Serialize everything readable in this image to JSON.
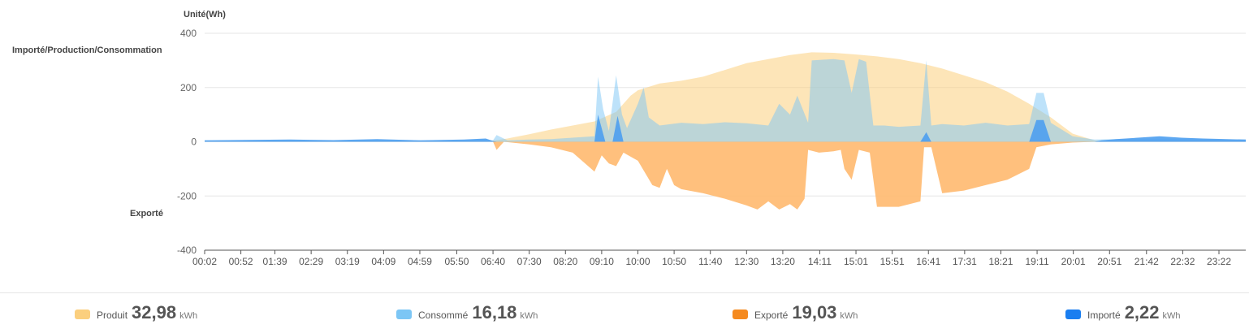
{
  "labels": {
    "unit": "Unité(Wh)",
    "positive_axis": "Importé/Production/Consommation",
    "negative_axis": "Exporté"
  },
  "legend": [
    {
      "name": "Produit",
      "value": "32,98",
      "unit": "kWh",
      "color": "#fbcf7e"
    },
    {
      "name": "Consommé",
      "value": "16,18",
      "unit": "kWh",
      "color": "#7cc6f5"
    },
    {
      "name": "Exporté",
      "value": "19,03",
      "unit": "kWh",
      "color": "#f58a1f"
    },
    {
      "name": "Importé",
      "value": "2,22",
      "unit": "kWh",
      "color": "#1a7ef0"
    }
  ],
  "chart_data": {
    "type": "area",
    "grid": true,
    "ylim": [
      -400,
      400
    ],
    "yticks": [
      400,
      200,
      0,
      -200,
      -400
    ],
    "xlim": [
      "00:02",
      "23:59"
    ],
    "xtick_labels": [
      "00:02",
      "00:52",
      "01:39",
      "02:29",
      "03:19",
      "04:09",
      "04:59",
      "05:50",
      "06:40",
      "07:30",
      "08:20",
      "09:10",
      "10:00",
      "10:50",
      "11:40",
      "12:30",
      "13:20",
      "14:11",
      "15:01",
      "15:51",
      "16:41",
      "17:31",
      "18:21",
      "19:11",
      "20:01",
      "20:51",
      "21:42",
      "22:32",
      "23:22"
    ],
    "series": [
      {
        "name": "Produit",
        "color": "#fbcf7e",
        "opacity": 0.55,
        "points": [
          [
            "00:02",
            0
          ],
          [
            "06:30",
            0
          ],
          [
            "07:00",
            12
          ],
          [
            "07:30",
            28
          ],
          [
            "08:00",
            45
          ],
          [
            "08:30",
            60
          ],
          [
            "09:00",
            75
          ],
          [
            "09:30",
            110
          ],
          [
            "09:50",
            170
          ],
          [
            "10:00",
            190
          ],
          [
            "10:30",
            215
          ],
          [
            "11:00",
            225
          ],
          [
            "11:30",
            240
          ],
          [
            "12:00",
            265
          ],
          [
            "12:30",
            290
          ],
          [
            "13:00",
            305
          ],
          [
            "13:30",
            320
          ],
          [
            "14:00",
            330
          ],
          [
            "14:30",
            328
          ],
          [
            "15:00",
            322
          ],
          [
            "15:30",
            315
          ],
          [
            "16:00",
            305
          ],
          [
            "16:30",
            290
          ],
          [
            "17:00",
            270
          ],
          [
            "17:30",
            245
          ],
          [
            "18:00",
            220
          ],
          [
            "18:30",
            185
          ],
          [
            "19:00",
            140
          ],
          [
            "19:30",
            90
          ],
          [
            "20:00",
            30
          ],
          [
            "20:30",
            5
          ],
          [
            "20:50",
            0
          ],
          [
            "23:59",
            0
          ]
        ]
      },
      {
        "name": "Consommé",
        "color": "#7cc6f5",
        "opacity": 0.5,
        "points": [
          [
            "00:02",
            5
          ],
          [
            "06:40",
            5
          ],
          [
            "06:45",
            25
          ],
          [
            "07:00",
            5
          ],
          [
            "07:30",
            8
          ],
          [
            "08:00",
            10
          ],
          [
            "08:30",
            15
          ],
          [
            "09:00",
            20
          ],
          [
            "09:05",
            240
          ],
          [
            "09:12",
            120
          ],
          [
            "09:20",
            40
          ],
          [
            "09:30",
            245
          ],
          [
            "09:38",
            100
          ],
          [
            "09:45",
            50
          ],
          [
            "10:00",
            140
          ],
          [
            "10:08",
            200
          ],
          [
            "10:15",
            90
          ],
          [
            "10:30",
            60
          ],
          [
            "11:00",
            70
          ],
          [
            "11:30",
            65
          ],
          [
            "12:00",
            72
          ],
          [
            "12:30",
            68
          ],
          [
            "13:00",
            60
          ],
          [
            "13:15",
            140
          ],
          [
            "13:30",
            100
          ],
          [
            "13:40",
            170
          ],
          [
            "13:55",
            70
          ],
          [
            "14:00",
            300
          ],
          [
            "14:30",
            305
          ],
          [
            "14:45",
            300
          ],
          [
            "14:55",
            180
          ],
          [
            "15:05",
            305
          ],
          [
            "15:15",
            295
          ],
          [
            "15:25",
            60
          ],
          [
            "15:40",
            60
          ],
          [
            "16:00",
            55
          ],
          [
            "16:30",
            60
          ],
          [
            "16:38",
            300
          ],
          [
            "16:45",
            60
          ],
          [
            "17:00",
            65
          ],
          [
            "17:30",
            60
          ],
          [
            "18:00",
            70
          ],
          [
            "18:30",
            60
          ],
          [
            "19:00",
            65
          ],
          [
            "19:10",
            180
          ],
          [
            "19:20",
            180
          ],
          [
            "19:30",
            70
          ],
          [
            "20:00",
            20
          ],
          [
            "20:30",
            8
          ],
          [
            "21:00",
            10
          ],
          [
            "23:59",
            8
          ]
        ]
      },
      {
        "name": "Exporté",
        "color": "#ffb96f",
        "opacity": 0.9,
        "points": [
          [
            "00:02",
            0
          ],
          [
            "06:40",
            0
          ],
          [
            "06:45",
            -30
          ],
          [
            "06:55",
            0
          ],
          [
            "07:30",
            -10
          ],
          [
            "08:00",
            -20
          ],
          [
            "08:30",
            -40
          ],
          [
            "09:00",
            -110
          ],
          [
            "09:10",
            -50
          ],
          [
            "09:20",
            -80
          ],
          [
            "09:30",
            -90
          ],
          [
            "09:40",
            -40
          ],
          [
            "10:00",
            -70
          ],
          [
            "10:20",
            -160
          ],
          [
            "10:30",
            -170
          ],
          [
            "10:40",
            -100
          ],
          [
            "10:50",
            -160
          ],
          [
            "11:00",
            -175
          ],
          [
            "11:30",
            -190
          ],
          [
            "12:00",
            -210
          ],
          [
            "12:30",
            -235
          ],
          [
            "12:45",
            -250
          ],
          [
            "13:00",
            -220
          ],
          [
            "13:15",
            -250
          ],
          [
            "13:30",
            -230
          ],
          [
            "13:40",
            -250
          ],
          [
            "13:50",
            -210
          ],
          [
            "13:55",
            -30
          ],
          [
            "14:10",
            -40
          ],
          [
            "14:30",
            -35
          ],
          [
            "14:40",
            -30
          ],
          [
            "14:45",
            -100
          ],
          [
            "14:55",
            -140
          ],
          [
            "15:05",
            -30
          ],
          [
            "15:20",
            -40
          ],
          [
            "15:30",
            -240
          ],
          [
            "16:00",
            -240
          ],
          [
            "16:30",
            -220
          ],
          [
            "16:35",
            -20
          ],
          [
            "16:45",
            -20
          ],
          [
            "17:00",
            -190
          ],
          [
            "17:30",
            -180
          ],
          [
            "18:00",
            -160
          ],
          [
            "18:30",
            -140
          ],
          [
            "19:00",
            -100
          ],
          [
            "19:10",
            -20
          ],
          [
            "19:30",
            -10
          ],
          [
            "20:00",
            -3
          ],
          [
            "20:30",
            0
          ],
          [
            "23:59",
            0
          ]
        ]
      },
      {
        "name": "Importé",
        "color": "#4d9ff0",
        "opacity": 0.9,
        "points": [
          [
            "00:02",
            5
          ],
          [
            "02:00",
            8
          ],
          [
            "03:00",
            6
          ],
          [
            "04:00",
            10
          ],
          [
            "05:00",
            5
          ],
          [
            "06:00",
            8
          ],
          [
            "06:30",
            12
          ],
          [
            "06:40",
            3
          ],
          [
            "06:45",
            0
          ],
          [
            "09:00",
            0
          ],
          [
            "09:05",
            100
          ],
          [
            "09:15",
            0
          ],
          [
            "09:25",
            0
          ],
          [
            "09:32",
            95
          ],
          [
            "09:40",
            0
          ],
          [
            "16:30",
            0
          ],
          [
            "16:38",
            35
          ],
          [
            "16:45",
            0
          ],
          [
            "19:00",
            0
          ],
          [
            "19:10",
            80
          ],
          [
            "19:20",
            80
          ],
          [
            "19:30",
            0
          ],
          [
            "20:30",
            0
          ],
          [
            "20:40",
            5
          ],
          [
            "21:00",
            10
          ],
          [
            "21:30",
            15
          ],
          [
            "22:00",
            20
          ],
          [
            "22:30",
            15
          ],
          [
            "23:00",
            12
          ],
          [
            "23:59",
            8
          ]
        ]
      }
    ]
  }
}
